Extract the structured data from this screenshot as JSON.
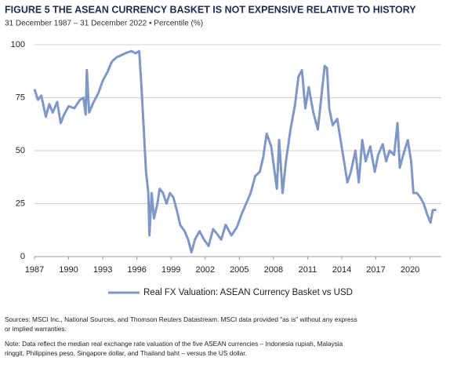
{
  "chart_data": {
    "type": "line",
    "title": "FIGURE 5  THE ASEAN CURRENCY BASKET IS NOT EXPENSIVE RELATIVE TO HISTORY",
    "subtitle": "31 December 1987 – 31 December 2022 • Percentile (%)",
    "x": [
      1987.0,
      1987.3,
      1987.6,
      1988.0,
      1988.3,
      1988.6,
      1989.0,
      1989.3,
      1989.6,
      1990.0,
      1990.5,
      1991.0,
      1991.3,
      1991.5,
      1991.6,
      1991.8,
      1992.2,
      1992.6,
      1993.0,
      1993.4,
      1993.8,
      1994.2,
      1994.6,
      1995.0,
      1995.5,
      1995.9,
      1996.2,
      1996.4,
      1996.6,
      1996.8,
      1997.0,
      1997.1,
      1997.3,
      1997.5,
      1997.8,
      1998.0,
      1998.3,
      1998.6,
      1998.9,
      1999.2,
      1999.5,
      1999.8,
      2000.2,
      2000.5,
      2000.8,
      2001.1,
      2001.5,
      2001.9,
      2002.3,
      2002.7,
      2003.0,
      2003.4,
      2003.8,
      2004.3,
      2004.8,
      2005.2,
      2005.6,
      2006.0,
      2006.4,
      2006.8,
      2007.1,
      2007.4,
      2007.8,
      2008.1,
      2008.3,
      2008.5,
      2008.8,
      2009.1,
      2009.5,
      2009.9,
      2010.2,
      2010.5,
      2010.8,
      2011.1,
      2011.5,
      2011.9,
      2012.2,
      2012.5,
      2012.7,
      2012.9,
      2013.2,
      2013.6,
      2013.9,
      2014.2,
      2014.5,
      2014.8,
      2015.2,
      2015.5,
      2015.8,
      2016.1,
      2016.5,
      2016.9,
      2017.2,
      2017.6,
      2017.9,
      2018.2,
      2018.6,
      2018.9,
      2019.1,
      2019.4,
      2019.8,
      2020.1,
      2020.3,
      2020.6,
      2020.9,
      2021.2,
      2021.5,
      2021.8,
      2022.0,
      2022.3
    ],
    "series": [
      {
        "name": "Real FX Valuation: ASEAN Currency Basket vs USD",
        "color": "#7f97c6",
        "values": [
          79,
          74,
          76,
          66,
          72,
          68,
          73,
          63,
          67,
          71,
          70,
          74,
          75,
          67,
          88,
          68,
          73,
          77,
          83,
          87,
          92,
          94,
          95,
          96,
          97,
          96,
          97,
          80,
          60,
          40,
          30,
          10,
          30,
          18,
          25,
          32,
          30,
          25,
          30,
          28,
          22,
          15,
          12,
          8,
          2,
          8,
          12,
          8,
          5,
          13,
          11,
          8,
          15,
          10,
          14,
          20,
          25,
          30,
          38,
          40,
          47,
          58,
          52,
          40,
          32,
          55,
          30,
          45,
          60,
          72,
          85,
          88,
          70,
          80,
          68,
          60,
          75,
          90,
          89,
          70,
          62,
          65,
          55,
          45,
          35,
          40,
          50,
          35,
          55,
          45,
          52,
          40,
          48,
          53,
          45,
          50,
          48,
          63,
          42,
          48,
          55,
          45,
          30,
          30,
          28,
          25,
          20,
          16,
          22,
          22
        ]
      }
    ],
    "xlim": [
      1987,
      2022.75
    ],
    "xticks": [
      1987,
      1990,
      1993,
      1996,
      1999,
      2002,
      2005,
      2008,
      2011,
      2014,
      2017,
      2020
    ],
    "ylim": [
      0,
      100
    ],
    "yticks": [
      0,
      25,
      50,
      75,
      100
    ],
    "grid": true,
    "legend": "bottom",
    "source": "Sources: MSCI Inc., National Sources, and Thomson Reuters Datastream. MSCI data provided \"as is\" without any express or implied warranties.",
    "note": "Note: Data reflect the median real exchange rate valuation of the five ASEAN currencies – Indonesia rupiah, Malaysia ringgit, Philippines peso, Singapore dollar, and Thailand baht – versus the US dollar."
  }
}
